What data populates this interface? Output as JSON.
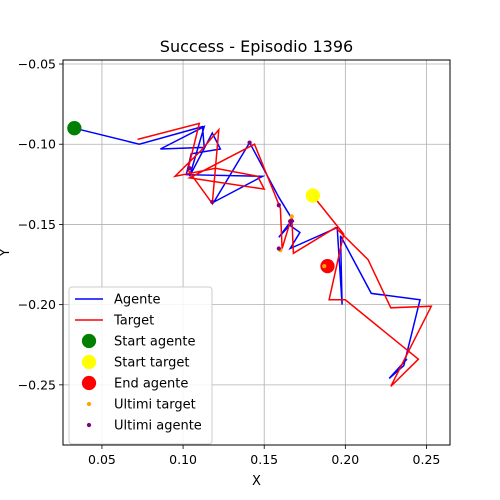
{
  "chart_data": {
    "type": "line",
    "title": "Success - Episodio 1396",
    "xlabel": "X",
    "ylabel": "Y",
    "xlim": [
      0.026,
      0.2645
    ],
    "ylim": [
      -0.2875,
      -0.0475
    ],
    "xticks": [
      "0.05",
      "0.10",
      "0.15",
      "0.20",
      "0.25"
    ],
    "xtick_values": [
      0.05,
      0.1,
      0.15,
      0.2,
      0.25
    ],
    "yticks": [
      "−0.05",
      "−0.10",
      "−0.15",
      "−0.20",
      "−0.25"
    ],
    "ytick_values": [
      -0.05,
      -0.1,
      -0.15,
      -0.2,
      -0.25
    ],
    "grid": true,
    "legend_position": "lower-left",
    "series": [
      {
        "name": "Agente",
        "kind": "line",
        "color": "#0000ff",
        "points": [
          [
            0.033,
            -0.09
          ],
          [
            0.073,
            -0.1
          ],
          [
            0.112,
            -0.089
          ],
          [
            0.113,
            -0.102
          ],
          [
            0.086,
            -0.103
          ],
          [
            0.113,
            -0.089
          ],
          [
            0.104,
            -0.12
          ],
          [
            0.118,
            -0.093
          ],
          [
            0.123,
            -0.103
          ],
          [
            0.105,
            -0.106
          ],
          [
            0.102,
            -0.119
          ],
          [
            0.149,
            -0.12
          ],
          [
            0.119,
            -0.136
          ],
          [
            0.141,
            -0.099
          ],
          [
            0.159,
            -0.133
          ],
          [
            0.168,
            -0.148
          ],
          [
            0.159,
            -0.158
          ],
          [
            0.165,
            -0.15
          ],
          [
            0.172,
            -0.155
          ],
          [
            0.166,
            -0.165
          ],
          [
            0.195,
            -0.152
          ],
          [
            0.198,
            -0.2
          ],
          [
            0.197,
            -0.157
          ],
          [
            0.216,
            -0.193
          ],
          [
            0.246,
            -0.197
          ],
          [
            0.236,
            -0.238
          ],
          [
            0.227,
            -0.246
          ],
          [
            0.236,
            -0.236
          ],
          [
            0.238,
            -0.234
          ]
        ]
      },
      {
        "name": "Target",
        "kind": "line",
        "color": "#ff0000",
        "points": [
          [
            0.072,
            -0.097
          ],
          [
            0.11,
            -0.087
          ],
          [
            0.103,
            -0.116
          ],
          [
            0.118,
            -0.137
          ],
          [
            0.122,
            -0.091
          ],
          [
            0.111,
            -0.104
          ],
          [
            0.095,
            -0.12
          ],
          [
            0.12,
            -0.115
          ],
          [
            0.146,
            -0.12
          ],
          [
            0.15,
            -0.128
          ],
          [
            0.104,
            -0.121
          ],
          [
            0.144,
            -0.1
          ],
          [
            0.16,
            -0.14
          ],
          [
            0.161,
            -0.165
          ],
          [
            0.167,
            -0.145
          ],
          [
            0.168,
            -0.168
          ],
          [
            0.194,
            -0.152
          ],
          [
            0.214,
            -0.172
          ],
          [
            0.228,
            -0.202
          ],
          [
            0.253,
            -0.201
          ],
          [
            0.228,
            -0.251
          ],
          [
            0.245,
            -0.234
          ],
          [
            0.2,
            -0.197
          ],
          [
            0.19,
            -0.197
          ],
          [
            0.199,
            -0.156
          ],
          [
            0.18,
            -0.132
          ]
        ]
      },
      {
        "name": "Start agente",
        "kind": "marker",
        "color": "#008000",
        "size": 10,
        "points": [
          [
            0.033,
            -0.09
          ]
        ]
      },
      {
        "name": "Start target",
        "kind": "marker",
        "color": "#ffff00",
        "size": 10,
        "points": [
          [
            0.18,
            -0.132
          ]
        ]
      },
      {
        "name": "End agente",
        "kind": "marker",
        "color": "#ff0000",
        "size": 10,
        "points": [
          [
            0.189,
            -0.176
          ]
        ]
      },
      {
        "name": "Ultimi target",
        "kind": "marker",
        "color": "#ffa500",
        "size": 3,
        "points": [
          [
            0.16,
            -0.166
          ],
          [
            0.167,
            -0.145
          ],
          [
            0.187,
            -0.176
          ]
        ]
      },
      {
        "name": "Ultimi agente",
        "kind": "marker",
        "color": "#800080",
        "size": 3,
        "points": [
          [
            0.141,
            -0.099
          ],
          [
            0.118,
            -0.136
          ],
          [
            0.104,
            -0.115
          ],
          [
            0.159,
            -0.138
          ],
          [
            0.159,
            -0.165
          ],
          [
            0.166,
            -0.148
          ]
        ]
      }
    ]
  }
}
